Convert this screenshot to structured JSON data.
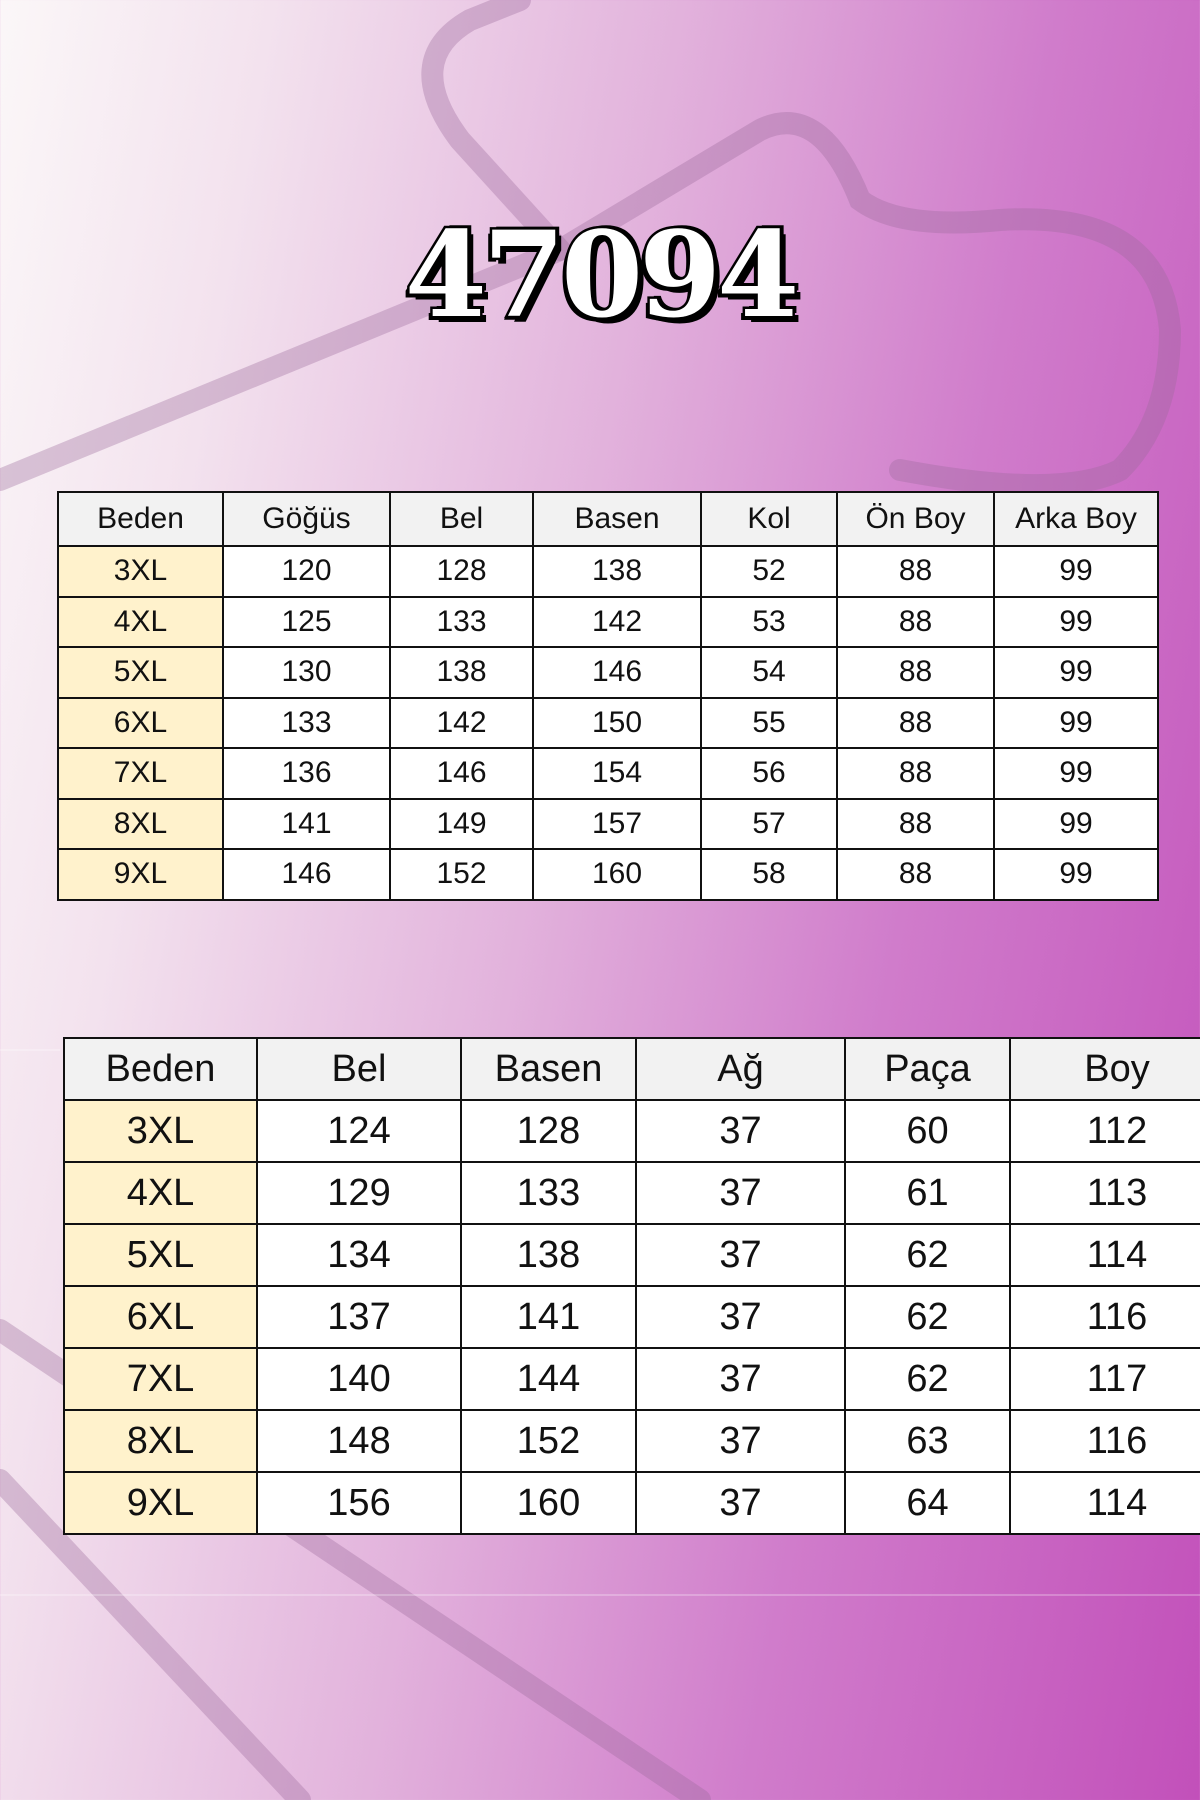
{
  "title": "47094",
  "colors": {
    "background_left": "#fbf7f8",
    "background_right": "#c250ba",
    "size_cell": "#fff2cc",
    "header_cell": "#f2f2f2"
  },
  "top_table": {
    "headers": [
      "Beden",
      "Göğüs",
      "Bel",
      "Basen",
      "Kol",
      "Ön Boy",
      "Arka Boy"
    ],
    "rows": [
      [
        "3XL",
        "120",
        "128",
        "138",
        "52",
        "88",
        "99"
      ],
      [
        "4XL",
        "125",
        "133",
        "142",
        "53",
        "88",
        "99"
      ],
      [
        "5XL",
        "130",
        "138",
        "146",
        "54",
        "88",
        "99"
      ],
      [
        "6XL",
        "133",
        "142",
        "150",
        "55",
        "88",
        "99"
      ],
      [
        "7XL",
        "136",
        "146",
        "154",
        "56",
        "88",
        "99"
      ],
      [
        "8XL",
        "141",
        "149",
        "157",
        "57",
        "88",
        "99"
      ],
      [
        "9XL",
        "146",
        "152",
        "160",
        "58",
        "88",
        "99"
      ]
    ]
  },
  "bottom_table": {
    "headers": [
      "Beden",
      "Bel",
      "Basen",
      "Ağ",
      "Paça",
      "Boy"
    ],
    "rows": [
      [
        "3XL",
        "124",
        "128",
        "37",
        "60",
        "112"
      ],
      [
        "4XL",
        "129",
        "133",
        "37",
        "61",
        "113"
      ],
      [
        "5XL",
        "134",
        "138",
        "37",
        "62",
        "114"
      ],
      [
        "6XL",
        "137",
        "141",
        "37",
        "62",
        "116"
      ],
      [
        "7XL",
        "140",
        "144",
        "37",
        "62",
        "117"
      ],
      [
        "8XL",
        "148",
        "152",
        "37",
        "63",
        "116"
      ],
      [
        "9XL",
        "156",
        "160",
        "37",
        "64",
        "114"
      ]
    ]
  }
}
